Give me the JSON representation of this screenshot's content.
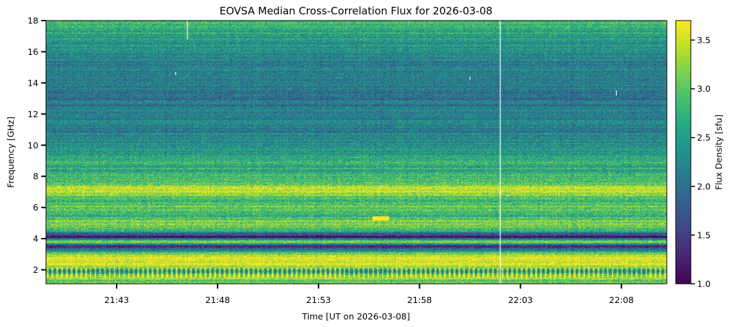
{
  "chart_data": {
    "type": "heatmap",
    "title": "EOVSA Median Cross-Correlation Flux for 2026-03-08",
    "xlabel": "Time [UT on 2026-03-08]",
    "ylabel": "Frequency [GHz]",
    "colorbar_label": "Flux Density [sfu]",
    "colormap": "viridis",
    "xlim": [
      "21:39:30",
      "22:10:15"
    ],
    "ylim": [
      1.1,
      18.0
    ],
    "clim": [
      1.0,
      3.7
    ],
    "x_ticks": [
      "21:43",
      "21:48",
      "21:53",
      "21:58",
      "22:03",
      "22:08"
    ],
    "y_ticks": [
      2,
      4,
      6,
      8,
      10,
      12,
      14,
      16,
      18
    ],
    "y_tick_labels": [
      "2",
      "4",
      "6",
      "8",
      "10",
      "12",
      "14",
      "16",
      "18"
    ],
    "colorbar_ticks": [
      1.0,
      1.5,
      2.0,
      2.5,
      3.0,
      3.5
    ],
    "colorbar_tick_labels": [
      "1.0",
      "1.5",
      "2.0",
      "2.5",
      "3.0",
      "3.5"
    ],
    "frequency_profile_sfu": [
      {
        "freq_ghz": 1.2,
        "flux": 3.0
      },
      {
        "freq_ghz": 1.6,
        "flux": 3.6
      },
      {
        "freq_ghz": 1.9,
        "flux": 2.6
      },
      {
        "freq_ghz": 2.2,
        "flux": 3.5
      },
      {
        "freq_ghz": 2.6,
        "flux": 3.7
      },
      {
        "freq_ghz": 3.0,
        "flux": 3.3
      },
      {
        "freq_ghz": 3.5,
        "flux": 1.2
      },
      {
        "freq_ghz": 3.8,
        "flux": 3.2
      },
      {
        "freq_ghz": 4.1,
        "flux": 1.1
      },
      {
        "freq_ghz": 4.5,
        "flux": 2.7
      },
      {
        "freq_ghz": 5.0,
        "flux": 3.2
      },
      {
        "freq_ghz": 5.5,
        "flux": 2.7
      },
      {
        "freq_ghz": 6.0,
        "flux": 3.1
      },
      {
        "freq_ghz": 6.6,
        "flux": 2.8
      },
      {
        "freq_ghz": 7.1,
        "flux": 3.6
      },
      {
        "freq_ghz": 7.6,
        "flux": 2.9
      },
      {
        "freq_ghz": 8.3,
        "flux": 2.6
      },
      {
        "freq_ghz": 9.0,
        "flux": 2.7
      },
      {
        "freq_ghz": 10.0,
        "flux": 2.3
      },
      {
        "freq_ghz": 11.0,
        "flux": 2.2
      },
      {
        "freq_ghz": 12.0,
        "flux": 2.2
      },
      {
        "freq_ghz": 13.0,
        "flux": 2.0
      },
      {
        "freq_ghz": 14.0,
        "flux": 2.1
      },
      {
        "freq_ghz": 15.0,
        "flux": 2.2
      },
      {
        "freq_ghz": 16.0,
        "flux": 2.3
      },
      {
        "freq_ghz": 17.0,
        "flux": 2.5
      },
      {
        "freq_ghz": 18.0,
        "flux": 2.8
      }
    ],
    "features": [
      {
        "kind": "burst",
        "time_start": "21:55:40",
        "time_end": "21:56:30",
        "freq_ghz": 5.3,
        "flux": 3.7
      },
      {
        "kind": "data_gap",
        "time": "22:02:00",
        "freq_range_ghz": [
          1.1,
          18.0
        ]
      },
      {
        "kind": "data_gap",
        "time": "21:46:30",
        "freq_range_ghz": [
          16.8,
          18.0
        ]
      },
      {
        "kind": "data_gap",
        "time": "21:45:55",
        "freq_range_ghz": [
          14.5,
          14.7
        ]
      },
      {
        "kind": "data_gap",
        "time": "22:00:30",
        "freq_range_ghz": [
          14.2,
          14.4
        ]
      },
      {
        "kind": "data_gap",
        "time": "22:07:45",
        "freq_range_ghz": [
          13.2,
          13.5
        ]
      }
    ]
  }
}
